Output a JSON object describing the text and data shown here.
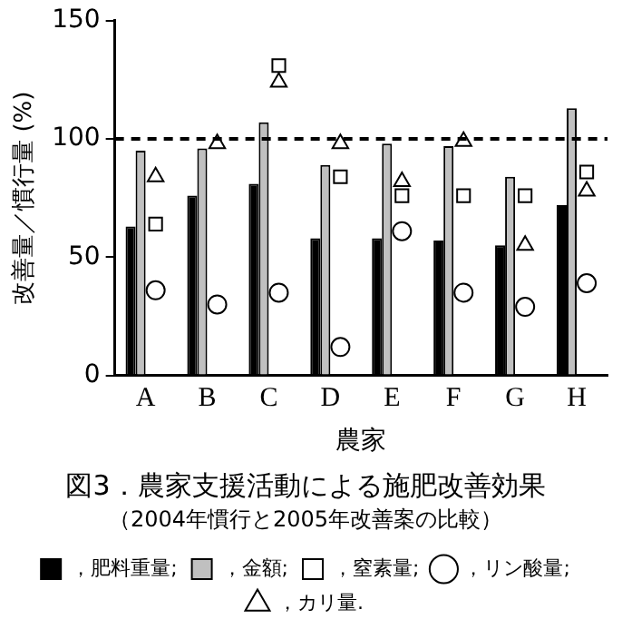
{
  "chart_data": {
    "type": "bar",
    "title": "図3．農家支援活動による施肥改善効果",
    "subtitle": "（2004年慣行と2005年改善案の比較）",
    "xlabel": "農家",
    "ylabel": "改善量／慣行量 (%)",
    "categories": [
      "A",
      "B",
      "C",
      "D",
      "E",
      "F",
      "G",
      "H"
    ],
    "series": [
      {
        "name": "，肥料重量;",
        "color": "#000000",
        "values": [
          63,
          76,
          81,
          58,
          58,
          57,
          55,
          72
        ]
      },
      {
        "name": "，金額;",
        "color": "#c0c0c0",
        "values": [
          95,
          96,
          107,
          89,
          98,
          97,
          84,
          113
        ]
      },
      {
        "name": "，窒素量;",
        "type": "scatter",
        "marker": "square",
        "color": "#ffffff",
        "x": [
          "A",
          "B",
          "C",
          "D",
          "E",
          "F",
          "G",
          "H"
        ],
        "values": [
          64,
          null,
          131,
          84,
          76,
          76,
          76,
          86
        ]
      },
      {
        "name": "，リン酸量;",
        "type": "scatter",
        "marker": "circle",
        "color": "#ffffff",
        "x": [
          "A",
          "B",
          "C",
          "D",
          "E",
          "F",
          "G",
          "H"
        ],
        "values": [
          36,
          30,
          35,
          12,
          61,
          35,
          29,
          39
        ]
      },
      {
        "name": "，カリ量.",
        "type": "scatter",
        "marker": "triangle",
        "color": "#ffffff",
        "x": [
          "A",
          "B",
          "C",
          "D",
          "E",
          "F",
          "G",
          "H"
        ],
        "values": [
          84,
          98,
          124,
          98,
          82,
          99,
          55,
          78
        ]
      }
    ],
    "ylim": [
      0,
      150
    ],
    "yticks": [
      0,
      50,
      100,
      150
    ],
    "grid": false,
    "legend": "bottom",
    "ref_lines": [
      {
        "axis": "y",
        "value": 100,
        "line_style": "dashed",
        "color": "#000000"
      }
    ]
  }
}
